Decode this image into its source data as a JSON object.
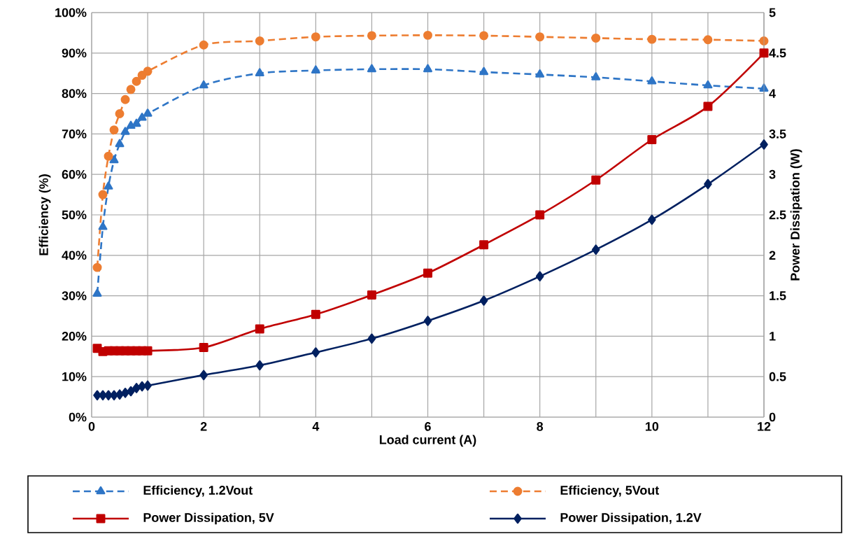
{
  "chart_data": {
    "type": "line",
    "xlabel": "Load current (A)",
    "ylabel": "Efficiency (%)",
    "y2label": "Power Dissipation (W)",
    "x": [
      0.1,
      0.2,
      0.3,
      0.4,
      0.5,
      0.6,
      0.7,
      0.8,
      0.9,
      1,
      2,
      3,
      4,
      5,
      6,
      7,
      8,
      9,
      10,
      11,
      12
    ],
    "series": [
      {
        "name": "Efficiency, 1.2Vout",
        "color": "#2e75c6",
        "marker": "triangle",
        "line_style": "dashed",
        "values": [
          30.5,
          47,
          57,
          63.5,
          67.5,
          70.5,
          72,
          72.5,
          74,
          75,
          82,
          85,
          85.7,
          86,
          86,
          85.3,
          84.7,
          84,
          83,
          82,
          81.2
        ]
      },
      {
        "name": "Efficiency, 5Vout",
        "color": "#ed7d31",
        "marker": "circle",
        "line_style": "dashed",
        "values": [
          37,
          55,
          64.5,
          71,
          75,
          78.5,
          81,
          83,
          84.5,
          85.5,
          92,
          93,
          94,
          94.3,
          94.4,
          94.3,
          94,
          93.7,
          93.4,
          93.3,
          93
        ]
      },
      {
        "name": "Power Dissipation, 5V",
        "color": "#c00000",
        "marker": "square",
        "line_style": "solid",
        "axis": "y2",
        "values": [
          0.85,
          0.81,
          0.82,
          0.82,
          0.82,
          0.82,
          0.82,
          0.82,
          0.82,
          0.82,
          0.86,
          1.09,
          1.27,
          1.51,
          1.78,
          2.13,
          2.5,
          2.93,
          3.43,
          3.84,
          4.5
        ]
      },
      {
        "name": "Power Dissipation, 1.2V",
        "color": "#002060",
        "marker": "diamond",
        "line_style": "solid",
        "axis": "y2",
        "values": [
          0.27,
          0.27,
          0.27,
          0.27,
          0.28,
          0.3,
          0.32,
          0.36,
          0.38,
          0.39,
          0.52,
          0.64,
          0.8,
          0.97,
          1.19,
          1.44,
          1.74,
          2.07,
          2.44,
          2.88,
          3.37
        ]
      }
    ],
    "xlim": [
      0,
      12
    ],
    "xticks": [
      0,
      {
        "value": 1,
        "label": null
      },
      2,
      {
        "value": 3,
        "label": null
      },
      4,
      {
        "value": 5,
        "label": null
      },
      6,
      {
        "value": 7,
        "label": null
      },
      8,
      {
        "value": 9,
        "label": null
      },
      10,
      {
        "value": 11,
        "label": null
      },
      12
    ],
    "ylim": [
      0,
      100
    ],
    "yticks": [
      {
        "value": 0,
        "label": "0%"
      },
      {
        "value": 10,
        "label": "10%"
      },
      {
        "value": 20,
        "label": "20%"
      },
      {
        "value": 30,
        "label": "30%"
      },
      {
        "value": 40,
        "label": "40%"
      },
      {
        "value": 50,
        "label": "50%"
      },
      {
        "value": 60,
        "label": "60%"
      },
      {
        "value": 70,
        "label": "70%"
      },
      {
        "value": 80,
        "label": "80%"
      },
      {
        "value": 90,
        "label": "90%"
      },
      {
        "value": 100,
        "label": "100%"
      }
    ],
    "y2lim": [
      0,
      5
    ],
    "y2ticks": [
      0,
      0.5,
      1,
      1.5,
      2,
      2.5,
      3,
      3.5,
      4,
      4.5,
      5
    ],
    "grid": true,
    "legend": "bottom"
  }
}
